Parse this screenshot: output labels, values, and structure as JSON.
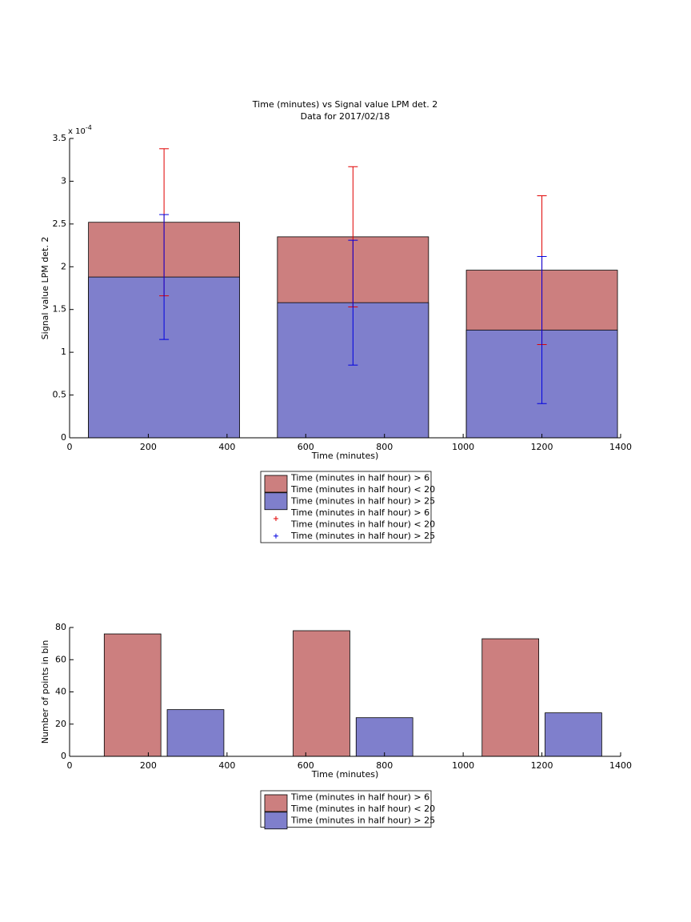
{
  "chart_data": [
    {
      "type": "bar",
      "barmode": "overlay",
      "title": "Time (minutes) vs Signal value LPM det. 2",
      "subtitle": "Data for 2017/02/18",
      "axis_multiplier": "x 10",
      "axis_exponent": "-4",
      "xlabel": "Time (minutes)",
      "ylabel": "Signal value LPM det. 2",
      "x": [
        240,
        720,
        1200
      ],
      "series": [
        {
          "name": [
            "Time (minutes in half hour) > 6",
            "Time (minutes in half hour) < 20"
          ],
          "color": "#cc7f7f",
          "error_color": "#e00000",
          "values": [
            2.52,
            2.35,
            1.96
          ],
          "errors": [
            0.86,
            0.82,
            0.87
          ]
        },
        {
          "name": [
            "Time (minutes in half hour) > 25"
          ],
          "color": "#7f7fcc",
          "error_color": "#0000e0",
          "values": [
            1.88,
            1.58,
            1.26
          ],
          "errors": [
            0.73,
            0.73,
            0.86
          ]
        }
      ],
      "xlim": [
        0,
        1400
      ],
      "xticks": [
        0,
        200,
        400,
        600,
        800,
        1000,
        1200,
        1400
      ],
      "ylim": [
        0,
        3.5
      ],
      "yticks": [
        0,
        0.5,
        1,
        1.5,
        2,
        2.5,
        3,
        3.5
      ]
    },
    {
      "type": "bar",
      "barmode": "group",
      "xlabel": "Time (minutes)",
      "ylabel": "Number of points in bin",
      "x": [
        240,
        720,
        1200
      ],
      "series": [
        {
          "name": [
            "Time (minutes in half hour) > 6",
            "Time (minutes in half hour) < 20"
          ],
          "color": "#cc7f7f",
          "values": [
            76,
            78,
            73
          ]
        },
        {
          "name": [
            "Time (minutes in half hour) > 25"
          ],
          "color": "#7f7fcc",
          "values": [
            29,
            24,
            27
          ]
        }
      ],
      "xlim": [
        0,
        1400
      ],
      "xticks": [
        0,
        200,
        400,
        600,
        800,
        1000,
        1200,
        1400
      ],
      "ylim": [
        0,
        80
      ],
      "yticks": [
        0,
        20,
        40,
        60,
        80
      ]
    }
  ]
}
